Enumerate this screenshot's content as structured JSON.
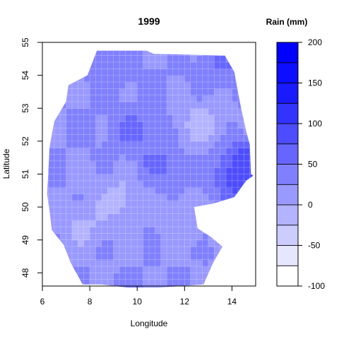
{
  "chart_data": {
    "type": "heatmap",
    "title": "1999",
    "xlabel": "Longitude",
    "ylabel": "Latitude",
    "xlim": [
      6,
      15
    ],
    "ylim": [
      47.6,
      55
    ],
    "x_ticks": [
      6,
      8,
      10,
      12,
      14
    ],
    "y_ticks": [
      48,
      49,
      50,
      51,
      52,
      53,
      54,
      55
    ],
    "grid": true,
    "legend": {
      "title": "Rain (mm)",
      "position": "right",
      "range": [
        -100,
        200
      ],
      "tick_values": [
        -100,
        -50,
        0,
        50,
        100,
        150,
        200
      ],
      "levels": [
        -100,
        -75,
        -50,
        -25,
        0,
        25,
        50,
        75,
        100,
        125,
        150,
        175,
        200
      ],
      "colors": [
        "#ffffff",
        "#e6e6ff",
        "#ccccff",
        "#b3b3ff",
        "#9999ff",
        "#8080ff",
        "#6666ff",
        "#4d4dff",
        "#3333ff",
        "#1a1aff",
        "#0d0dff",
        "#0000ff"
      ]
    },
    "extent": {
      "west": 6.3,
      "east": 14.8,
      "south": 47.6,
      "north": 54.8
    },
    "field_summary": {
      "typical_range": [
        -25,
        75
      ],
      "high_areas": [
        {
          "lon": 14.3,
          "lat": 50.9,
          "value": 90
        },
        {
          "lon": 14.5,
          "lat": 51.4,
          "value": 75
        },
        {
          "lon": 9.8,
          "lat": 52.4,
          "value": 55
        },
        {
          "lon": 8.8,
          "lat": 54.4,
          "value": 50
        },
        {
          "lon": 11.0,
          "lat": 51.3,
          "value": 55
        },
        {
          "lon": 13.5,
          "lat": 54.2,
          "value": 50
        }
      ],
      "low_areas": [
        {
          "lon": 12.7,
          "lat": 52.5,
          "value": -15
        },
        {
          "lon": 9.3,
          "lat": 50.3,
          "value": -10
        },
        {
          "lon": 7.7,
          "lat": 49.4,
          "value": -5
        },
        {
          "lon": 12.0,
          "lat": 49.6,
          "value": 0
        }
      ]
    }
  }
}
